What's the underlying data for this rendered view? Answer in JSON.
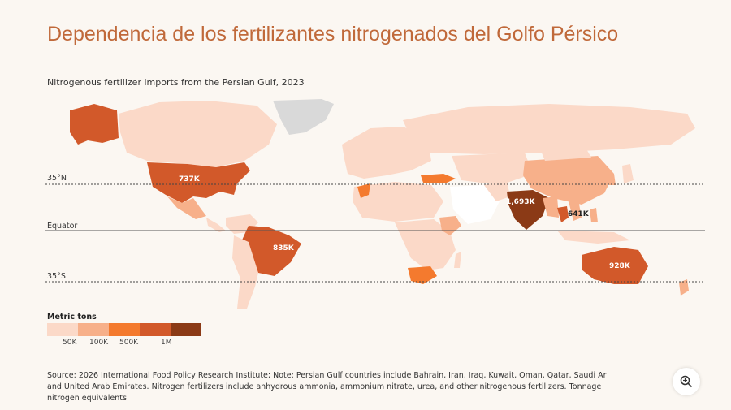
{
  "title": "Dependencia de los fertilizantes nitrogenados del Golfo Pérsico",
  "subtitle": "Nitrogenous fertilizer imports from the Persian Gulf, 2023",
  "reference_lines": {
    "north": "35°N",
    "equator": "Equator",
    "south": "35°S"
  },
  "legend": {
    "title": "Metric tons",
    "ticks": [
      "50K",
      "100K",
      "500K",
      "1M"
    ],
    "colors": [
      "#fbd9c8",
      "#f7b08a",
      "#f47a2e",
      "#d2592a",
      "#8b3a16"
    ]
  },
  "colors": {
    "no_data": "#d9d9d9",
    "gulf_exporters": "#ffffff",
    "title": "#c0693a"
  },
  "labeled_countries": [
    {
      "name": "United States",
      "value_label": "737K"
    },
    {
      "name": "India",
      "value_label": "1,693K"
    },
    {
      "name": "Thailand",
      "value_label": "641K"
    },
    {
      "name": "Brazil",
      "value_label": "835K"
    },
    {
      "name": "Australia",
      "value_label": "928K"
    }
  ],
  "source": {
    "line1": "Source: 2026 International Food Policy Research Institute; Note: Persian Gulf countries include Bahrain, Iran, Iraq, Kuwait, Oman, Qatar, Saudi Ar",
    "line2": "and United Arab Emirates. Nitrogen fertilizers include anhydrous ammonia, ammonium nitrate, urea, and other nitrogenous fertilizers. Tonnage",
    "line3": "nitrogen equivalents."
  },
  "zoom": {
    "icon": "zoom-in-icon"
  }
}
